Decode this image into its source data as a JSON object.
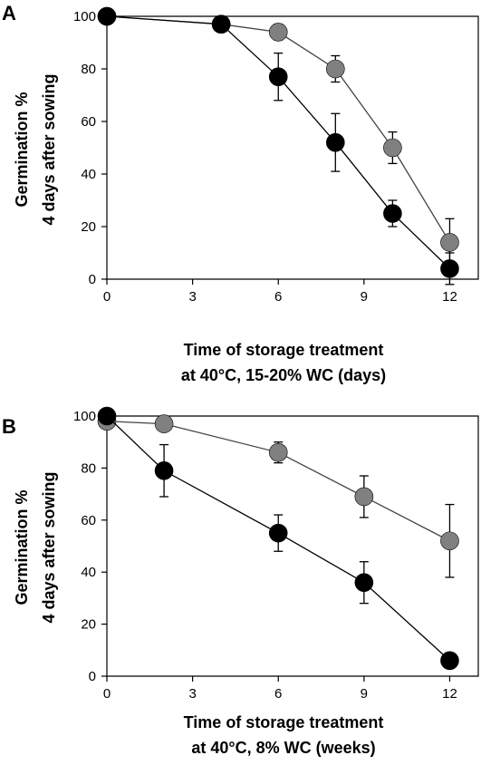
{
  "colors": {
    "series_a": "#000000",
    "series_b": "#808080",
    "series_line_a": "#000000",
    "series_line_b": "#444444"
  },
  "chart_data": [
    {
      "panel": "A",
      "type": "line",
      "xlabel": [
        "Time of storage treatment",
        "at 40°C, 15-20% WC (days)"
      ],
      "ylabel": [
        "Germination %",
        "4 days after sowing"
      ],
      "xlim": [
        0,
        13
      ],
      "ylim": [
        0,
        100
      ],
      "xticks": [
        0,
        3,
        6,
        9,
        12
      ],
      "yticks": [
        0,
        20,
        40,
        60,
        80,
        100
      ],
      "grid": false,
      "series": [
        {
          "color": "#000000",
          "x": [
            0,
            4,
            6,
            8,
            10,
            12
          ],
          "y": [
            100,
            97,
            77,
            52,
            25,
            4
          ],
          "err": [
            0,
            0,
            9,
            11,
            5,
            6
          ]
        },
        {
          "color": "#808080",
          "x": [
            0,
            4,
            6,
            8,
            10,
            12
          ],
          "y": [
            100,
            97,
            94,
            80,
            50,
            14
          ],
          "err": [
            0,
            0,
            3,
            5,
            6,
            9
          ]
        }
      ]
    },
    {
      "panel": "B",
      "type": "line",
      "xlabel": [
        "Time of storage treatment",
        "at 40°C, 8% WC (weeks)"
      ],
      "ylabel": [
        "Germination %",
        "4 days after sowing"
      ],
      "xlim": [
        0,
        13
      ],
      "ylim": [
        0,
        100
      ],
      "xticks": [
        0,
        3,
        6,
        9,
        12
      ],
      "yticks": [
        0,
        20,
        40,
        60,
        80,
        100
      ],
      "grid": false,
      "series": [
        {
          "color": "#000000",
          "x": [
            0,
            2,
            6,
            9,
            12
          ],
          "y": [
            100,
            79,
            55,
            36,
            6
          ],
          "err": [
            0,
            10,
            7,
            8,
            3
          ]
        },
        {
          "color": "#808080",
          "x": [
            0,
            2,
            6,
            9,
            12
          ],
          "y": [
            98,
            97,
            86,
            69,
            52
          ],
          "err": [
            0,
            2,
            4,
            8,
            14
          ]
        }
      ]
    }
  ]
}
